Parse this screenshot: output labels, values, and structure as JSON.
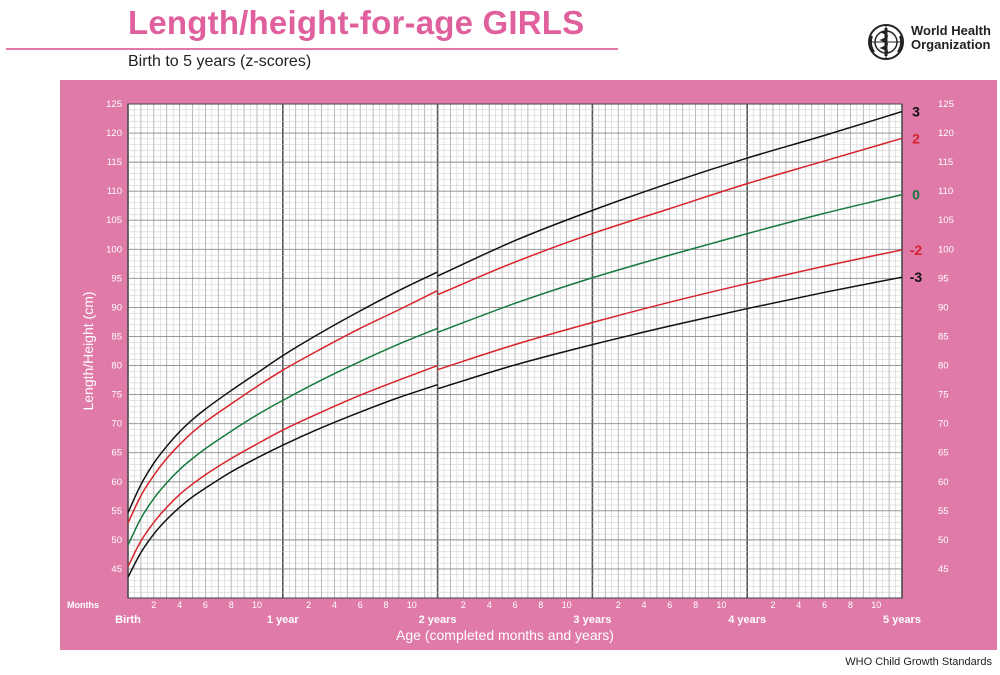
{
  "header": {
    "title": "Length/height-for-age GIRLS",
    "subtitle": "Birth to 5 years (z-scores)",
    "org_line1": "World Health",
    "org_line2": "Organization",
    "footer": "WHO Child Growth Standards",
    "logo_icon": "who-emblem-icon"
  },
  "colors": {
    "frame": "#e07aa8",
    "title": "#e0609d",
    "line_black": "#111111",
    "line_red": "#d8232a",
    "line_green": "#157a3c",
    "grid_minor": "#c8c8c8",
    "grid_major": "#555555"
  },
  "chart_data": {
    "type": "line",
    "title": "Length/height-for-age GIRLS",
    "subtitle": "Birth to 5 years (z-scores)",
    "xlabel": "Age (completed months and years)",
    "ylabel": "Length/Height (cm)",
    "xlim": [
      0,
      60
    ],
    "ylim": [
      40,
      125
    ],
    "y_ticks": [
      45,
      50,
      55,
      60,
      65,
      70,
      75,
      80,
      85,
      90,
      95,
      100,
      105,
      110,
      115,
      120,
      125
    ],
    "x_axis_label_months": "Months",
    "x_month_ticks": [
      "2",
      "4",
      "6",
      "8",
      "10"
    ],
    "x_year_labels": [
      {
        "month": 0,
        "label": "Birth"
      },
      {
        "month": 12,
        "label": "1 year"
      },
      {
        "month": 24,
        "label": "2 years"
      },
      {
        "month": 36,
        "label": "3 years"
      },
      {
        "month": 48,
        "label": "4 years"
      },
      {
        "month": 60,
        "label": "5 years"
      }
    ],
    "grid": true,
    "segment_break_month": 24,
    "series": [
      {
        "name": "3",
        "color": "#111111",
        "length_months": [
          0,
          1,
          2,
          3,
          4,
          5,
          6,
          8,
          10,
          12,
          15,
          18,
          21,
          24
        ],
        "length_values": [
          54.7,
          59.5,
          63.2,
          66.1,
          68.6,
          70.7,
          72.5,
          75.7,
          78.7,
          81.7,
          85.7,
          89.4,
          92.9,
          96.1
        ],
        "height_months": [
          24,
          30,
          36,
          42,
          48,
          54,
          60
        ],
        "height_values": [
          95.4,
          101.5,
          106.7,
          111.4,
          115.7,
          119.6,
          123.7
        ]
      },
      {
        "name": "2",
        "color": "#d8232a",
        "length_months": [
          0,
          1,
          2,
          3,
          4,
          5,
          6,
          8,
          10,
          12,
          15,
          18,
          21,
          24
        ],
        "length_values": [
          52.9,
          57.6,
          61.1,
          64.0,
          66.4,
          68.5,
          70.3,
          73.4,
          76.4,
          79.2,
          82.9,
          86.4,
          89.6,
          92.9
        ],
        "height_months": [
          24,
          30,
          36,
          42,
          48,
          54,
          60
        ],
        "height_values": [
          92.2,
          97.8,
          102.7,
          107.0,
          111.3,
          115.2,
          119.1
        ]
      },
      {
        "name": "0",
        "color": "#157a3c",
        "length_months": [
          0,
          1,
          2,
          3,
          4,
          5,
          6,
          8,
          10,
          12,
          15,
          18,
          21,
          24
        ],
        "length_values": [
          49.1,
          53.7,
          57.1,
          59.8,
          62.1,
          64.0,
          65.7,
          68.7,
          71.5,
          74.0,
          77.5,
          80.7,
          83.7,
          86.4
        ],
        "height_months": [
          24,
          30,
          36,
          42,
          48,
          54,
          60
        ],
        "height_values": [
          85.7,
          90.7,
          95.1,
          99.0,
          102.7,
          106.2,
          109.4
        ]
      },
      {
        "name": "-2",
        "color": "#d8232a",
        "length_months": [
          0,
          1,
          2,
          3,
          4,
          5,
          6,
          8,
          10,
          12,
          15,
          18,
          21,
          24
        ],
        "length_values": [
          45.4,
          49.8,
          53.0,
          55.6,
          57.8,
          59.6,
          61.2,
          64.0,
          66.5,
          68.9,
          72.0,
          74.9,
          77.5,
          80.0
        ],
        "height_months": [
          24,
          30,
          36,
          42,
          48,
          54,
          60
        ],
        "height_values": [
          79.3,
          83.6,
          87.4,
          90.9,
          94.1,
          97.1,
          99.9
        ]
      },
      {
        "name": "-3",
        "color": "#111111",
        "length_months": [
          0,
          1,
          2,
          3,
          4,
          5,
          6,
          8,
          10,
          12,
          15,
          18,
          21,
          24
        ],
        "length_values": [
          43.6,
          47.8,
          51.0,
          53.5,
          55.6,
          57.4,
          58.9,
          61.7,
          64.1,
          66.3,
          69.3,
          72.0,
          74.5,
          76.7
        ],
        "height_months": [
          24,
          30,
          36,
          42,
          48,
          54,
          60
        ],
        "height_values": [
          76.0,
          80.1,
          83.6,
          86.8,
          89.8,
          92.6,
          95.2
        ]
      }
    ]
  }
}
